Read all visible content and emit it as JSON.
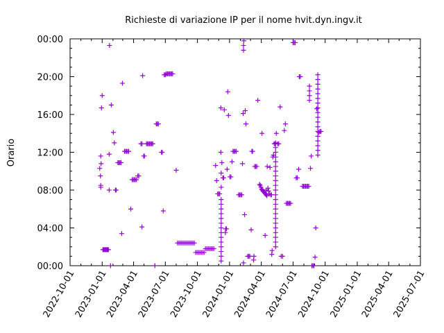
{
  "chart_data": {
    "type": "scatter",
    "title": "Richieste di variazione IP per il nome hvit.dyn.ingv.it",
    "xlabel": "",
    "ylabel": "Orario",
    "x_ticks": [
      "2022-10-01",
      "2023-01-01",
      "2023-04-01",
      "2023-07-01",
      "2023-10-01",
      "2024-01-01",
      "2024-04-01",
      "2024-07-01",
      "2024-10-01",
      "2025-01-01",
      "2025-04-01",
      "2025-07-01"
    ],
    "y_ticks": [
      "00:00",
      "04:00",
      "08:00",
      "12:00",
      "16:00",
      "20:00",
      "00:00"
    ],
    "xlim": [
      "2022-10-01",
      "2025-07-01"
    ],
    "ylim_hours": [
      0,
      24
    ],
    "marker": "plus",
    "color": "#9400d3",
    "grid": false,
    "series": [
      {
        "points": [
          [
            "2022-12-25",
            10.3
          ],
          [
            "2022-12-27",
            9.5
          ],
          [
            "2022-12-28",
            8.3
          ],
          [
            "2022-12-28",
            8.5
          ],
          [
            "2022-12-28",
            11.6
          ],
          [
            "2022-12-29",
            10.8
          ],
          [
            "2022-12-30",
            16.7
          ],
          [
            "2023-01-01",
            18.0
          ],
          [
            "2023-01-03",
            1.7
          ],
          [
            "2023-01-05",
            1.7
          ],
          [
            "2023-01-07",
            1.7
          ],
          [
            "2023-01-09",
            1.7
          ],
          [
            "2023-01-11",
            1.7
          ],
          [
            "2023-01-13",
            1.7
          ],
          [
            "2023-01-15",
            1.7
          ],
          [
            "2023-01-17",
            1.7
          ],
          [
            "2023-01-19",
            1.7
          ],
          [
            "2023-01-21",
            11.8
          ],
          [
            "2023-01-21",
            8.0
          ],
          [
            "2023-01-22",
            23.3
          ],
          [
            "2023-01-25",
            0.0
          ],
          [
            "2023-01-27",
            17.0
          ],
          [
            "2023-02-02",
            14.1
          ],
          [
            "2023-02-05",
            13.0
          ],
          [
            "2023-02-08",
            8.0
          ],
          [
            "2023-02-10",
            8.0
          ],
          [
            "2023-02-15",
            10.9
          ],
          [
            "2023-02-18",
            10.9
          ],
          [
            "2023-02-21",
            10.9
          ],
          [
            "2023-02-24",
            10.9
          ],
          [
            "2023-02-26",
            3.4
          ],
          [
            "2023-02-28",
            19.3
          ],
          [
            "2023-03-06",
            12.1
          ],
          [
            "2023-03-09",
            12.1
          ],
          [
            "2023-03-12",
            12.1
          ],
          [
            "2023-03-15",
            12.1
          ],
          [
            "2023-03-18",
            12.1
          ],
          [
            "2023-03-24",
            6.0
          ],
          [
            "2023-03-28",
            9.1
          ],
          [
            "2023-03-31",
            9.1
          ],
          [
            "2023-04-03",
            9.1
          ],
          [
            "2023-04-06",
            9.1
          ],
          [
            "2023-04-09",
            9.1
          ],
          [
            "2023-04-13",
            9.5
          ],
          [
            "2023-04-16",
            9.5
          ],
          [
            "2023-04-22",
            12.9
          ],
          [
            "2023-04-25",
            4.1
          ],
          [
            "2023-04-25",
            12.9
          ],
          [
            "2023-04-27",
            20.1
          ],
          [
            "2023-04-30",
            11.6
          ],
          [
            "2023-05-02",
            11.6
          ],
          [
            "2023-05-08",
            12.9
          ],
          [
            "2023-05-11",
            12.9
          ],
          [
            "2023-05-14",
            12.9
          ],
          [
            "2023-05-17",
            12.9
          ],
          [
            "2023-05-20",
            12.9
          ],
          [
            "2023-05-23",
            12.9
          ],
          [
            "2023-05-26",
            12.9
          ],
          [
            "2023-06-01",
            0.0
          ],
          [
            "2023-06-05",
            15.0
          ],
          [
            "2023-06-08",
            15.0
          ],
          [
            "2023-06-11",
            15.0
          ],
          [
            "2023-06-20",
            12.0
          ],
          [
            "2023-06-22",
            12.0
          ],
          [
            "2023-06-25",
            5.8
          ],
          [
            "2023-06-28",
            20.2
          ],
          [
            "2023-07-01",
            20.2
          ],
          [
            "2023-07-04",
            20.3
          ],
          [
            "2023-07-07",
            20.3
          ],
          [
            "2023-07-10",
            20.3
          ],
          [
            "2023-07-13",
            20.3
          ],
          [
            "2023-07-16",
            20.3
          ],
          [
            "2023-07-19",
            20.3
          ],
          [
            "2023-07-22",
            20.3
          ],
          [
            "2023-08-01",
            10.1
          ],
          [
            "2023-08-05",
            2.4
          ],
          [
            "2023-08-09",
            2.4
          ],
          [
            "2023-08-13",
            2.4
          ],
          [
            "2023-08-17",
            2.4
          ],
          [
            "2023-08-21",
            2.4
          ],
          [
            "2023-08-25",
            2.4
          ],
          [
            "2023-08-29",
            2.4
          ],
          [
            "2023-09-02",
            2.4
          ],
          [
            "2023-09-06",
            2.4
          ],
          [
            "2023-09-10",
            2.4
          ],
          [
            "2023-09-14",
            2.4
          ],
          [
            "2023-09-18",
            2.4
          ],
          [
            "2023-09-22",
            2.4
          ],
          [
            "2023-09-26",
            1.4
          ],
          [
            "2023-09-30",
            1.4
          ],
          [
            "2023-10-04",
            1.4
          ],
          [
            "2023-10-08",
            1.4
          ],
          [
            "2023-10-12",
            1.4
          ],
          [
            "2023-10-16",
            1.4
          ],
          [
            "2023-10-20",
            1.4
          ],
          [
            "2023-10-24",
            1.8
          ],
          [
            "2023-10-28",
            1.8
          ],
          [
            "2023-11-01",
            1.8
          ],
          [
            "2023-11-05",
            1.8
          ],
          [
            "2023-11-09",
            1.8
          ],
          [
            "2023-11-13",
            1.8
          ],
          [
            "2023-11-17",
            1.8
          ],
          [
            "2023-11-22",
            10.6
          ],
          [
            "2023-11-25",
            9.0
          ],
          [
            "2023-11-28",
            7.6
          ],
          [
            "2023-12-01",
            7.6
          ],
          [
            "2023-12-04",
            7.6
          ],
          [
            "2023-12-07",
            12.0
          ],
          [
            "2023-12-07",
            16.7
          ],
          [
            "2023-12-08",
            0.5
          ],
          [
            "2023-12-08",
            1.0
          ],
          [
            "2023-12-08",
            1.5
          ],
          [
            "2023-12-08",
            2.0
          ],
          [
            "2023-12-08",
            2.5
          ],
          [
            "2023-12-08",
            3.0
          ],
          [
            "2023-12-08",
            3.5
          ],
          [
            "2023-12-08",
            4.0
          ],
          [
            "2023-12-08",
            4.5
          ],
          [
            "2023-12-08",
            5.0
          ],
          [
            "2023-12-08",
            5.5
          ],
          [
            "2023-12-08",
            6.0
          ],
          [
            "2023-12-08",
            6.5
          ],
          [
            "2023-12-08",
            7.0
          ],
          [
            "2023-12-08",
            8.3
          ],
          [
            "2023-12-08",
            9.8
          ],
          [
            "2023-12-10",
            10.9
          ],
          [
            "2023-12-13",
            9.3
          ],
          [
            "2023-12-15",
            9.3
          ],
          [
            "2023-12-17",
            16.5
          ],
          [
            "2023-12-20",
            3.5
          ],
          [
            "2023-12-21",
            3.9
          ],
          [
            "2023-12-23",
            3.9
          ],
          [
            "2023-12-25",
            10.2
          ],
          [
            "2023-12-27",
            18.4
          ],
          [
            "2023-12-29",
            15.9
          ],
          [
            "2024-01-02",
            9.4
          ],
          [
            "2024-01-05",
            9.4
          ],
          [
            "2024-01-08",
            11.0
          ],
          [
            "2024-01-11",
            12.1
          ],
          [
            "2024-01-14",
            12.1
          ],
          [
            "2024-01-17",
            12.1
          ],
          [
            "2024-01-20",
            12.1
          ],
          [
            "2024-01-27",
            7.5
          ],
          [
            "2024-01-30",
            7.5
          ],
          [
            "2024-02-02",
            7.5
          ],
          [
            "2024-02-05",
            7.5
          ],
          [
            "2024-02-07",
            10.8
          ],
          [
            "2024-02-09",
            16.1
          ],
          [
            "2024-02-10",
            0.3
          ],
          [
            "2024-02-10",
            22.8
          ],
          [
            "2024-02-10",
            23.3
          ],
          [
            "2024-02-11",
            23.8
          ],
          [
            "2024-02-13",
            5.4
          ],
          [
            "2024-02-15",
            16.4
          ],
          [
            "2024-02-17",
            15.0
          ],
          [
            "2024-02-22",
            1.0
          ],
          [
            "2024-02-25",
            1.0
          ],
          [
            "2024-02-28",
            1.0
          ],
          [
            "2024-03-03",
            3.8
          ],
          [
            "2024-03-05",
            12.1
          ],
          [
            "2024-03-07",
            12.1
          ],
          [
            "2024-03-10",
            0.6
          ],
          [
            "2024-03-11",
            1.0
          ],
          [
            "2024-03-13",
            10.5
          ],
          [
            "2024-03-16",
            10.5
          ],
          [
            "2024-03-19",
            10.5
          ],
          [
            "2024-03-22",
            17.5
          ],
          [
            "2024-03-27",
            8.6
          ],
          [
            "2024-03-29",
            8.5
          ],
          [
            "2024-03-31",
            8.3
          ],
          [
            "2024-04-02",
            8.1
          ],
          [
            "2024-04-04",
            8.0
          ],
          [
            "2024-04-06",
            7.9
          ],
          [
            "2024-04-08",
            7.8
          ],
          [
            "2024-04-11",
            7.7
          ],
          [
            "2024-04-13",
            7.6
          ],
          [
            "2024-04-15",
            7.5
          ],
          [
            "2024-04-17",
            7.4
          ],
          [
            "2024-04-03",
            14.0
          ],
          [
            "2024-04-12",
            3.2
          ],
          [
            "2024-04-15",
            8.0
          ],
          [
            "2024-04-18",
            10.5
          ],
          [
            "2024-04-20",
            8.2
          ],
          [
            "2024-04-22",
            7.9
          ],
          [
            "2024-04-24",
            7.6
          ],
          [
            "2024-04-26",
            10.4
          ],
          [
            "2024-04-28",
            7.5
          ],
          [
            "2024-04-30",
            7.5
          ],
          [
            "2024-05-01",
            1.2
          ],
          [
            "2024-05-02",
            1.6
          ],
          [
            "2024-05-04",
            11.5
          ],
          [
            "2024-05-06",
            11.7
          ],
          [
            "2024-05-08",
            12.9
          ],
          [
            "2024-05-11",
            12.9
          ],
          [
            "2024-05-12",
            2.0
          ],
          [
            "2024-05-12",
            2.5
          ],
          [
            "2024-05-12",
            3.0
          ],
          [
            "2024-05-12",
            3.5
          ],
          [
            "2024-05-12",
            4.0
          ],
          [
            "2024-05-12",
            4.5
          ],
          [
            "2024-05-12",
            5.0
          ],
          [
            "2024-05-12",
            5.5
          ],
          [
            "2024-05-12",
            6.0
          ],
          [
            "2024-05-12",
            6.5
          ],
          [
            "2024-05-12",
            7.0
          ],
          [
            "2024-05-12",
            7.5
          ],
          [
            "2024-05-12",
            8.0
          ],
          [
            "2024-05-12",
            8.5
          ],
          [
            "2024-05-12",
            9.0
          ],
          [
            "2024-05-12",
            9.5
          ],
          [
            "2024-05-12",
            10.0
          ],
          [
            "2024-05-12",
            10.5
          ],
          [
            "2024-05-12",
            11.0
          ],
          [
            "2024-05-12",
            11.5
          ],
          [
            "2024-05-12",
            12.0
          ],
          [
            "2024-05-12",
            12.5
          ],
          [
            "2024-05-12",
            13.0
          ],
          [
            "2024-05-14",
            14.0
          ],
          [
            "2024-05-18",
            12.9
          ],
          [
            "2024-05-21",
            12.9
          ],
          [
            "2024-05-25",
            16.8
          ],
          [
            "2024-05-28",
            1.0
          ],
          [
            "2024-06-01",
            1.0
          ],
          [
            "2024-06-06",
            14.3
          ],
          [
            "2024-06-09",
            15.0
          ],
          [
            "2024-06-12",
            6.6
          ],
          [
            "2024-06-15",
            6.6
          ],
          [
            "2024-06-18",
            6.6
          ],
          [
            "2024-06-21",
            6.6
          ],
          [
            "2024-06-24",
            6.6
          ],
          [
            "2024-07-01",
            23.6
          ],
          [
            "2024-07-04",
            23.6
          ],
          [
            "2024-07-07",
            23.6
          ],
          [
            "2024-07-10",
            9.3
          ],
          [
            "2024-07-13",
            9.3
          ],
          [
            "2024-07-17",
            10.2
          ],
          [
            "2024-07-19",
            20.0
          ],
          [
            "2024-07-22",
            20.0
          ],
          [
            "2024-07-28",
            8.4
          ],
          [
            "2024-07-31",
            8.4
          ],
          [
            "2024-08-03",
            8.4
          ],
          [
            "2024-08-06",
            8.4
          ],
          [
            "2024-08-09",
            8.4
          ],
          [
            "2024-08-12",
            8.4
          ],
          [
            "2024-08-15",
            8.4
          ],
          [
            "2024-08-17",
            17.5
          ],
          [
            "2024-08-17",
            18.0
          ],
          [
            "2024-08-17",
            18.5
          ],
          [
            "2024-08-17",
            19.0
          ],
          [
            "2024-08-20",
            10.3
          ],
          [
            "2024-08-22",
            11.6
          ],
          [
            "2024-08-24",
            0.0
          ],
          [
            "2024-08-27",
            0.0
          ],
          [
            "2024-08-30",
            0.0
          ],
          [
            "2024-09-02",
            0.9
          ],
          [
            "2024-09-04",
            4.0
          ],
          [
            "2024-09-07",
            16.6
          ],
          [
            "2024-09-10",
            11.7
          ],
          [
            "2024-09-10",
            12.2
          ],
          [
            "2024-09-10",
            12.7
          ],
          [
            "2024-09-10",
            13.2
          ],
          [
            "2024-09-10",
            13.7
          ],
          [
            "2024-09-10",
            14.2
          ],
          [
            "2024-09-10",
            14.7
          ],
          [
            "2024-09-10",
            15.2
          ],
          [
            "2024-09-10",
            15.7
          ],
          [
            "2024-09-10",
            16.2
          ],
          [
            "2024-09-10",
            16.7
          ],
          [
            "2024-09-10",
            17.2
          ],
          [
            "2024-09-10",
            17.7
          ],
          [
            "2024-09-10",
            18.2
          ],
          [
            "2024-09-10",
            18.7
          ],
          [
            "2024-09-10",
            19.2
          ],
          [
            "2024-09-10",
            19.7
          ],
          [
            "2024-09-10",
            20.2
          ],
          [
            "2024-09-13",
            14.1
          ],
          [
            "2024-09-16",
            14.2
          ],
          [
            "2024-09-19",
            14.2
          ]
        ]
      }
    ]
  }
}
